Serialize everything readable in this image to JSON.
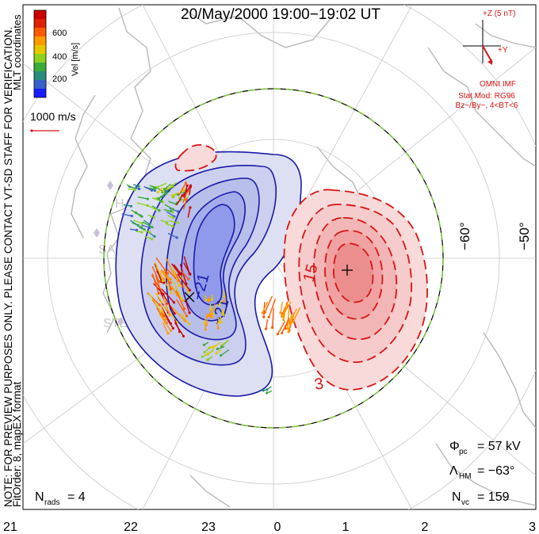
{
  "title": "20/May/2000 19:00−19:02 UT",
  "colorbar": {
    "label": "Vel [m/s]",
    "ticks": [
      "600",
      "400",
      "200"
    ],
    "colors": [
      "#cc0000",
      "#e02000",
      "#ff5a00",
      "#ff9900",
      "#e6c800",
      "#8cd21e",
      "#3caa3c",
      "#2a8c7a",
      "#3a5fcc",
      "#1a1aff"
    ]
  },
  "coordinate_label": "MLT coordinates",
  "velocity_scale": "1000 m/s",
  "imf": {
    "z_label": "+Z (5 nT)",
    "y_label": "+Y",
    "source": "OMNI IMF",
    "stat_mod": "Stat Mod: RG96",
    "condition": "Bz−/By−, 4<BT<6"
  },
  "preview_note": "NOTE: FOR PREVIEW PURPOSES ONLY. PLEASE CONTACT VT-SD STAFF FOR VERIFICATION.",
  "fit_order": "FitOrder: 8, mapEX format",
  "stations": [
    "HAL",
    "SAS",
    "STE",
    "K"
  ],
  "latitude_labels": [
    "−60°",
    "−50°"
  ],
  "contour_labels": [
    "15",
    "3",
    "−21",
    "−21"
  ],
  "stats": {
    "phi_pc": {
      "symbol": "Φ",
      "sub": "pc",
      "value": "= 57 kV"
    },
    "lambda_hm": {
      "symbol": "Λ",
      "sub": "HM",
      "value": "= −63°"
    },
    "n_vc": {
      "symbol": "N",
      "sub": "vc",
      "value": "= 159"
    },
    "n_rads": {
      "symbol": "N",
      "sub": "rads",
      "value": "= 4"
    }
  },
  "mlt_ticks": [
    "21",
    "22",
    "23",
    "0",
    "1",
    "2",
    "3"
  ],
  "colors": {
    "negative": "#1f2fb8",
    "positive": "#d81414",
    "boundary_dash": "#7dc43c"
  }
}
